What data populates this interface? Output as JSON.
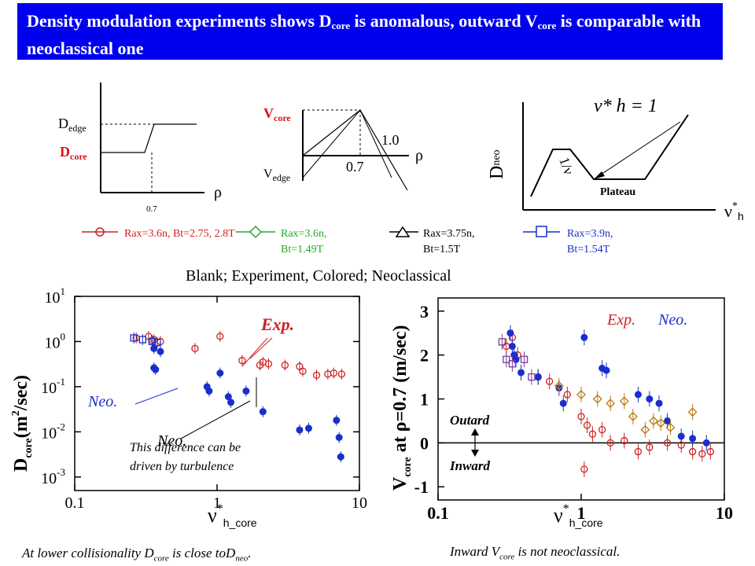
{
  "title": {
    "part1": "Density modulation experiments shows D",
    "sub1": "core",
    "part2": " is anomalous, outward V",
    "sub2": "core",
    "part3": " is comparable with neoclassical one"
  },
  "schematic1": {
    "d_edge": "D",
    "d_edge_sub": "edge",
    "d_core": "D",
    "d_core_sub": "core",
    "x_tick": "0.7",
    "x_symbol": "ρ"
  },
  "schematic2": {
    "v_core": "V",
    "v_core_sub": "core",
    "v_edge": "V",
    "v_edge_sub": "edge",
    "label_1_0": "1.0",
    "label_0_7": "0.7",
    "x_symbol": "ρ"
  },
  "schematic3": {
    "y_label": "D",
    "y_label_sub": "neo",
    "x_label": "ν",
    "x_label_sup": "*",
    "x_label_sub": "h",
    "eq": "ν* h = 1",
    "slope_label": "1/ν",
    "plateau": "Plateau"
  },
  "legend": [
    {
      "text": "Rax=3.6n, Bt=2.75, 2.8T",
      "color": "#cc2222",
      "marker": "circle"
    },
    {
      "text": "Rax=3.6n, Bt=1.49T",
      "color": "#22aa22",
      "marker": "diamond"
    },
    {
      "text": "Rax=3.75n, Bt=1.5T",
      "color": "#000000",
      "marker": "triangle"
    },
    {
      "text": "Rax=3.9n, Bt=1.54T",
      "color": "#1a2ecc",
      "marker": "square"
    }
  ],
  "blank_note": "Blank; Experiment, Colored; Neoclassical",
  "plot_left": {
    "y_ticks": [
      "10",
      "10",
      "10",
      "10",
      "10"
    ],
    "y_tick_exps": [
      "1",
      "0",
      "-1",
      "-2",
      "-3"
    ],
    "x_ticks": [
      "0.1",
      "1",
      "10"
    ],
    "y_axis_label": "D",
    "y_axis_sub": "core",
    "y_axis_unit": "(m",
    "y_axis_unit_sup": "2",
    "y_axis_unit_end": "/sec)",
    "x_axis_label": "ν",
    "x_axis_sup": "*",
    "x_axis_sub": "h_core",
    "exp_label": "Exp.",
    "neo_label": "Neo.",
    "neo_label2": "Neo.",
    "note_line1": "This difference can be",
    "note_line2": "driven by turbulence"
  },
  "plot_right": {
    "y_ticks": [
      "3",
      "2",
      "1",
      "0",
      "-1"
    ],
    "x_ticks": [
      "0.1",
      "1",
      "10"
    ],
    "y_axis_label": "V",
    "y_axis_sub": "core",
    "y_axis_rest": " at ρ=0.7 (m/sec)",
    "x_axis_label": "ν",
    "x_axis_sup": "*",
    "x_axis_sub": "h_core",
    "exp_label": "Exp.",
    "neo_label": "Neo.",
    "outward": "Outard",
    "inward": "Inward"
  },
  "caption_left": {
    "text1": "At lower collisionality D",
    "sub1": "core",
    "text2": " is close toD",
    "sub2": "neo",
    "text3": "."
  },
  "caption_right": {
    "text1": "Inward V",
    "sub1": "core",
    "text2": " is not neoclassical."
  },
  "chart_data": [
    {
      "type": "scatter",
      "x_scale": "log",
      "y_scale": "log",
      "xlim": [
        0.1,
        10
      ],
      "ylim": [
        0.0005,
        10
      ],
      "series": [
        {
          "name": "Exp.",
          "color": "#cc2222",
          "marker": "open",
          "points": [
            [
              0.27,
              1.2
            ],
            [
              0.33,
              1.3
            ],
            [
              0.35,
              1.05
            ],
            [
              0.36,
              1.1
            ],
            [
              0.4,
              1.0
            ],
            [
              0.7,
              0.7
            ],
            [
              1.05,
              1.3
            ],
            [
              1.5,
              0.38
            ],
            [
              2.0,
              0.3
            ],
            [
              2.1,
              0.35
            ],
            [
              2.3,
              0.32
            ],
            [
              3.0,
              0.3
            ],
            [
              3.8,
              0.28
            ],
            [
              4.0,
              0.22
            ],
            [
              5.0,
              0.18
            ],
            [
              6.0,
              0.19
            ],
            [
              6.6,
              0.2
            ],
            [
              7.5,
              0.19
            ]
          ]
        },
        {
          "name": "Exp.",
          "color": "#1a2ecc",
          "marker": "open-square",
          "points": [
            [
              0.26,
              1.2
            ],
            [
              0.3,
              1.1
            ],
            [
              0.35,
              1.0
            ],
            [
              0.38,
              0.95
            ]
          ]
        },
        {
          "name": "Neo.",
          "color": "#1a2ecc",
          "marker": "filled",
          "points": [
            [
              0.36,
              0.26
            ],
            [
              0.37,
              0.24
            ],
            [
              0.36,
              0.7
            ],
            [
              0.4,
              0.6
            ],
            [
              0.85,
              0.1
            ],
            [
              0.88,
              0.08
            ],
            [
              1.05,
              0.2
            ],
            [
              1.2,
              0.06
            ],
            [
              1.25,
              0.045
            ],
            [
              1.6,
              0.08
            ],
            [
              2.1,
              0.028
            ],
            [
              3.8,
              0.011
            ],
            [
              4.4,
              0.012
            ],
            [
              6.9,
              0.018
            ],
            [
              7.2,
              0.0075
            ],
            [
              7.4,
              0.0028
            ]
          ]
        }
      ]
    },
    {
      "type": "scatter",
      "x_scale": "log",
      "xlim": [
        0.1,
        10
      ],
      "ylim": [
        -1.3,
        3.3
      ],
      "series": [
        {
          "name": "Exp.",
          "color": "#cc2222",
          "marker": "open",
          "points": [
            [
              0.3,
              2.2
            ],
            [
              0.33,
              2.4
            ],
            [
              0.36,
              2.0
            ],
            [
              0.5,
              1.5
            ],
            [
              0.6,
              1.4
            ],
            [
              0.8,
              1.1
            ],
            [
              1.0,
              0.6
            ],
            [
              1.1,
              0.4
            ],
            [
              1.2,
              0.2
            ],
            [
              1.4,
              0.3
            ],
            [
              1.6,
              0.0
            ],
            [
              2.0,
              0.05
            ],
            [
              2.5,
              -0.2
            ],
            [
              3.0,
              -0.1
            ],
            [
              4.0,
              0.0
            ],
            [
              5.0,
              -0.05
            ],
            [
              6.0,
              -0.2
            ],
            [
              7.0,
              -0.25
            ],
            [
              8.0,
              -0.2
            ],
            [
              1.05,
              -0.6
            ]
          ]
        },
        {
          "name": "Neo.",
          "color": "#1a2ecc",
          "marker": "filled",
          "points": [
            [
              0.32,
              2.5
            ],
            [
              0.33,
              2.2
            ],
            [
              0.34,
              2.0
            ],
            [
              0.35,
              1.9
            ],
            [
              0.38,
              1.6
            ],
            [
              0.5,
              1.5
            ],
            [
              0.7,
              1.25
            ],
            [
              0.75,
              0.9
            ],
            [
              1.05,
              2.4
            ],
            [
              1.4,
              1.7
            ],
            [
              1.5,
              1.65
            ],
            [
              2.5,
              1.1
            ],
            [
              3.0,
              1.0
            ],
            [
              3.5,
              0.9
            ],
            [
              4.0,
              0.5
            ],
            [
              5.0,
              0.15
            ],
            [
              6.0,
              0.1
            ],
            [
              7.5,
              0.0
            ]
          ]
        },
        {
          "name": "Exp.",
          "color": "#b87a10",
          "marker": "open-diamond",
          "points": [
            [
              0.7,
              1.3
            ],
            [
              1.0,
              1.1
            ],
            [
              1.3,
              1.0
            ],
            [
              1.6,
              0.9
            ],
            [
              2.0,
              0.95
            ],
            [
              2.3,
              0.6
            ],
            [
              2.8,
              0.3
            ],
            [
              3.2,
              0.5
            ],
            [
              3.6,
              0.45
            ],
            [
              4.2,
              0.35
            ],
            [
              6.0,
              0.7
            ]
          ]
        },
        {
          "name": "Exp.",
          "color": "#7a3a9a",
          "marker": "open-square",
          "points": [
            [
              0.28,
              2.3
            ],
            [
              0.3,
              1.9
            ],
            [
              0.33,
              1.8
            ],
            [
              0.4,
              1.9
            ],
            [
              0.45,
              1.5
            ]
          ]
        }
      ]
    }
  ]
}
